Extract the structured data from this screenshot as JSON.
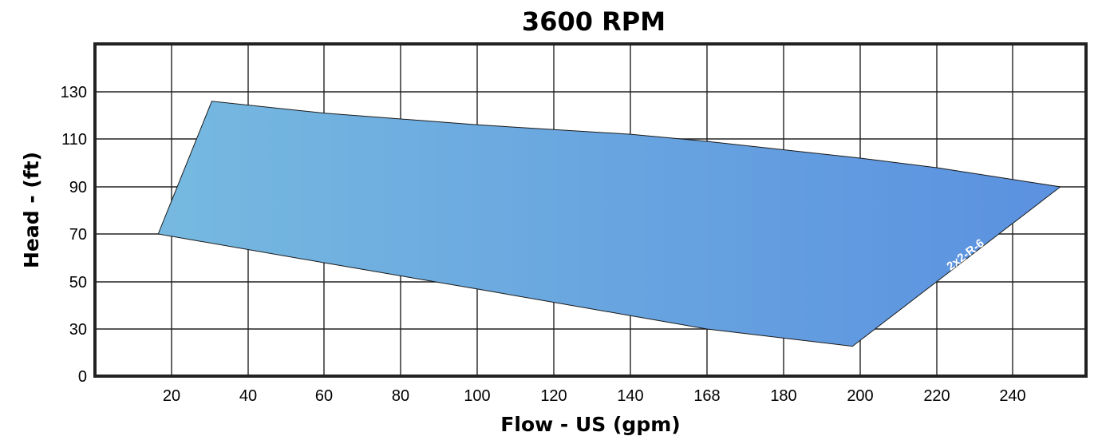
{
  "chart_data": {
    "type": "area",
    "title": "3600 RPM",
    "xlabel": "Flow - US (gpm)",
    "ylabel": "Head - (ft)",
    "x_ticks": [
      20,
      40,
      60,
      80,
      100,
      120,
      140,
      168,
      180,
      200,
      220,
      240
    ],
    "y_ticks": [
      0,
      30,
      50,
      70,
      90,
      110,
      130
    ],
    "grid": true,
    "series": [
      {
        "name": "2x2-R-6",
        "gradient": [
          "#76b9e0",
          "#5b91e0"
        ],
        "points": [
          {
            "x": 16.5,
            "y": 70
          },
          {
            "x": 30.5,
            "y": 126
          },
          {
            "x": 60,
            "y": 121
          },
          {
            "x": 100,
            "y": 116
          },
          {
            "x": 140,
            "y": 112
          },
          {
            "x": 168,
            "y": 109
          },
          {
            "x": 200,
            "y": 102
          },
          {
            "x": 220,
            "y": 98
          },
          {
            "x": 253,
            "y": 90
          },
          {
            "x": 198,
            "y": 19
          },
          {
            "x": 168,
            "y": 30
          },
          {
            "x": 100,
            "y": 47
          },
          {
            "x": 60,
            "y": 58
          },
          {
            "x": 16.5,
            "y": 70
          }
        ]
      }
    ]
  }
}
